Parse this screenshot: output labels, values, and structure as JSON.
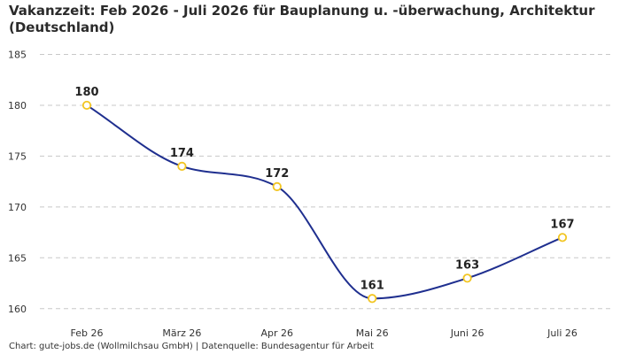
{
  "title": "Vakanzzeit: Feb 2026 - Juli 2026 für Bauplanung u. -überwachung, Architektur (Deutschland)",
  "footer": "Chart: gute-jobs.de (Wollmilchsau GmbH) | Datenquelle: Bundesagentur für Arbeit",
  "colors": {
    "line": "#1f2f8f",
    "marker": "#f2c521",
    "grid": "#c8c8c8"
  },
  "chart_data": {
    "type": "line",
    "title": "Vakanzzeit: Feb 2026 - Juli 2026 für Bauplanung u. -überwachung, Architektur (Deutschland)",
    "xlabel": "",
    "ylabel": "",
    "categories": [
      "Feb 26",
      "März 26",
      "Apr 26",
      "Mai 26",
      "Juni 26",
      "Juli 26"
    ],
    "series": [
      {
        "values": [
          180,
          174,
          172,
          161,
          163,
          167
        ]
      }
    ],
    "ylim": [
      158.5,
      186
    ],
    "yticks": [
      160,
      165,
      170,
      175,
      180,
      185
    ],
    "grid": true,
    "data_labels": true,
    "smooth": true
  }
}
